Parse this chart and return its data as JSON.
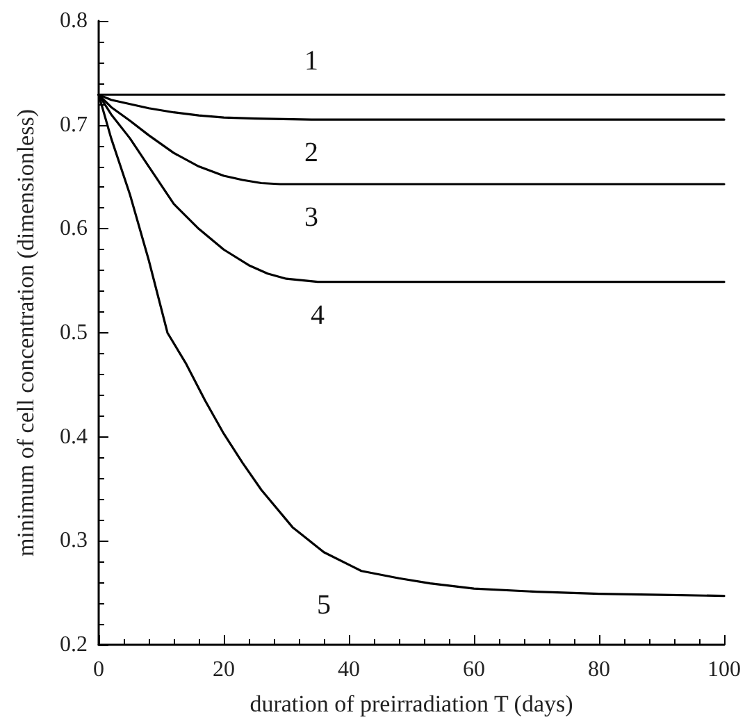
{
  "chart_data": {
    "type": "line",
    "xlabel": "duration of preirradiation T (days)",
    "ylabel": "minimum of cell concentration (dimensionless)",
    "xlim": [
      0,
      100
    ],
    "xticks": [
      0,
      20,
      40,
      60,
      80,
      100
    ],
    "ylim": [
      0.2,
      0.8
    ],
    "yticks": [
      0.2,
      0.3,
      0.4,
      0.5,
      0.6,
      0.7,
      0.8
    ],
    "grid": false,
    "marker": "none",
    "line_style": "solid",
    "series": [
      {
        "name": "1",
        "color": "#000000",
        "x": [
          0,
          34,
          100
        ],
        "values": [
          0.729,
          0.729,
          0.729
        ]
      },
      {
        "name": "2",
        "color": "#000000",
        "x": [
          0,
          2,
          5,
          8,
          12,
          16,
          20,
          25,
          34,
          45,
          60,
          100
        ],
        "values": [
          0.729,
          0.724,
          0.72,
          0.716,
          0.712,
          0.709,
          0.707,
          0.706,
          0.705,
          0.705,
          0.705,
          0.705
        ]
      },
      {
        "name": "3",
        "color": "#000000",
        "x": [
          0,
          2,
          5,
          8,
          12,
          16,
          20,
          23,
          26,
          29,
          34,
          45,
          60,
          100
        ],
        "values": [
          0.729,
          0.717,
          0.704,
          0.69,
          0.673,
          0.66,
          0.651,
          0.647,
          0.644,
          0.643,
          0.643,
          0.643,
          0.643,
          0.643
        ]
      },
      {
        "name": "4",
        "color": "#000000",
        "x": [
          0,
          2,
          5,
          8,
          12,
          16,
          20,
          24,
          27,
          30,
          35,
          40,
          60,
          100
        ],
        "values": [
          0.729,
          0.71,
          0.687,
          0.66,
          0.624,
          0.6,
          0.58,
          0.565,
          0.557,
          0.552,
          0.549,
          0.549,
          0.549,
          0.549
        ]
      },
      {
        "name": "5",
        "color": "#000000",
        "x": [
          0,
          2,
          5,
          8,
          11,
          14,
          17,
          20,
          23,
          26,
          31,
          36,
          42,
          48,
          53,
          60,
          70,
          80,
          90,
          100
        ],
        "values": [
          0.729,
          0.687,
          0.633,
          0.57,
          0.5,
          0.47,
          0.435,
          0.403,
          0.375,
          0.349,
          0.313,
          0.289,
          0.271,
          0.264,
          0.259,
          0.254,
          0.251,
          0.249,
          0.248,
          0.247
        ]
      }
    ]
  }
}
